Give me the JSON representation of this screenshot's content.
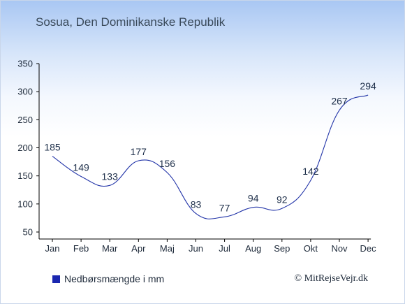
{
  "page": {
    "title": "Sosua, Den Dominikanske Republik",
    "credit": "© MitRejseVejr.dk"
  },
  "colors": {
    "line": "#2234a8",
    "legend_swatch": "#1b27b0",
    "axis": "#000000"
  },
  "chart_data": {
    "type": "line",
    "title": "",
    "xlabel": "",
    "ylabel": "",
    "categories": [
      "Jan",
      "Feb",
      "Mar",
      "Apr",
      "Maj",
      "Jun",
      "Jul",
      "Aug",
      "Sep",
      "Okt",
      "Nov",
      "Dec"
    ],
    "series": [
      {
        "name": "Nedbørsmængde i mm",
        "values": [
          185,
          149,
          133,
          177,
          156,
          83,
          77,
          94,
          92,
          142,
          267,
          294
        ]
      }
    ],
    "data_labels": [
      "185",
      "149",
      "133",
      "177",
      "156",
      "83",
      "77",
      "94",
      "92",
      "142",
      "267",
      "294"
    ],
    "ylim": [
      50,
      350
    ],
    "yticks": [
      50,
      100,
      150,
      200,
      250,
      300,
      350
    ],
    "ytick_labels": [
      "50",
      "100",
      "150",
      "200",
      "250",
      "300",
      "350"
    ],
    "grid": false,
    "legend": "bottom-left"
  }
}
